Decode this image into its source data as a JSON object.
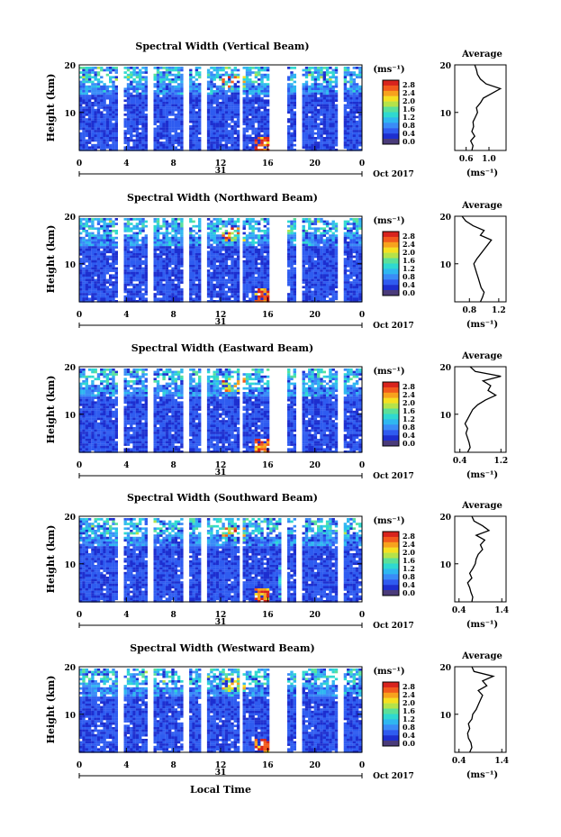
{
  "colors": {
    "scale": [
      "#3b2a8c",
      "#1d2fd0",
      "#2f5cf0",
      "#3a8cf7",
      "#2fb7f0",
      "#2fd9d0",
      "#5be09a",
      "#b5e34a",
      "#f5e020",
      "#f7a21d",
      "#f25a1d",
      "#d8231d"
    ],
    "bottom_box": "#4a3b7a",
    "line": "#000000",
    "gap": "#ffffff"
  },
  "chart_data": [
    {
      "type": "heatmap",
      "title": "Spectral Width (Vertical Beam)",
      "ylabel": "Height (km)",
      "y_ticks": [
        "20",
        "10"
      ],
      "x_ticks": [
        "0",
        "4",
        "8",
        "12",
        "16",
        "20",
        "0"
      ],
      "xlim": [
        0,
        24
      ],
      "ylim": [
        2,
        20
      ],
      "date_day": "31",
      "date_tail": "Oct 2017",
      "colorbar_unit": "(ms⁻¹)",
      "colorbar_ticks": [
        "2.8",
        "2.4",
        "2.0",
        "1.6",
        "1.2",
        "0.8",
        "0.4",
        "0.0"
      ],
      "avg_title": "Average",
      "avg_xlabel": "(ms⁻¹)",
      "avg_x_ticks": [
        "0.6",
        "1.0"
      ],
      "avg_xlim": [
        0.4,
        1.3
      ],
      "avg_y_ticks": [
        "20",
        "10"
      ],
      "avg_profile": {
        "height": [
          2,
          3,
          4,
          5,
          6,
          7,
          8,
          9,
          10,
          11,
          12,
          13,
          14,
          15,
          16,
          17,
          18,
          19,
          20
        ],
        "value": [
          0.7,
          0.72,
          0.68,
          0.75,
          0.7,
          0.73,
          0.72,
          0.76,
          0.8,
          0.78,
          0.85,
          0.9,
          1.05,
          1.2,
          0.95,
          0.85,
          0.8,
          0.78,
          0.75
        ]
      }
    },
    {
      "type": "heatmap",
      "title": "Spectral Width (Northward Beam)",
      "ylabel": "Height (km)",
      "y_ticks": [
        "20",
        "10"
      ],
      "x_ticks": [
        "0",
        "4",
        "8",
        "12",
        "16",
        "20",
        "0"
      ],
      "xlim": [
        0,
        24
      ],
      "ylim": [
        2,
        20
      ],
      "date_day": "31",
      "date_tail": "Oct 2017",
      "colorbar_unit": "(ms⁻¹)",
      "colorbar_ticks": [
        "2.8",
        "2.4",
        "2.0",
        "1.6",
        "1.2",
        "0.8",
        "0.4",
        "0.0"
      ],
      "avg_title": "Average",
      "avg_xlabel": "(ms⁻¹)",
      "avg_x_ticks": [
        "0.8",
        "1.2"
      ],
      "avg_xlim": [
        0.6,
        1.3
      ],
      "avg_y_ticks": [
        "20",
        "10"
      ],
      "avg_profile": {
        "height": [
          2,
          3,
          4,
          5,
          6,
          7,
          8,
          9,
          10,
          11,
          12,
          13,
          14,
          15,
          16,
          17,
          18,
          19,
          20
        ],
        "value": [
          0.95,
          0.98,
          1.0,
          0.96,
          0.94,
          0.92,
          0.9,
          0.88,
          0.86,
          0.9,
          0.95,
          1.0,
          1.05,
          1.1,
          0.95,
          1.0,
          0.85,
          0.75,
          0.7
        ]
      }
    },
    {
      "type": "heatmap",
      "title": "Spectral Width (Eastward Beam)",
      "ylabel": "Height (km)",
      "y_ticks": [
        "20",
        "10"
      ],
      "x_ticks": [
        "0",
        "4",
        "8",
        "12",
        "16",
        "20",
        "0"
      ],
      "xlim": [
        0,
        24
      ],
      "ylim": [
        2,
        20
      ],
      "date_day": "31",
      "date_tail": "Oct 2017",
      "colorbar_unit": "(ms⁻¹)",
      "colorbar_ticks": [
        "2.8",
        "2.4",
        "2.0",
        "1.6",
        "1.2",
        "0.8",
        "0.4",
        "0.0"
      ],
      "avg_title": "Average",
      "avg_xlabel": "(ms⁻¹)",
      "avg_x_ticks": [
        "0.4",
        "1.2"
      ],
      "avg_xlim": [
        0.3,
        1.3
      ],
      "avg_y_ticks": [
        "20",
        "10"
      ],
      "avg_profile": {
        "height": [
          2,
          3,
          4,
          5,
          6,
          7,
          8,
          9,
          10,
          11,
          12,
          13,
          14,
          15,
          16,
          17,
          18,
          19,
          20
        ],
        "value": [
          0.55,
          0.6,
          0.58,
          0.55,
          0.52,
          0.55,
          0.5,
          0.55,
          0.6,
          0.65,
          0.75,
          0.9,
          1.1,
          0.95,
          1.0,
          0.85,
          1.2,
          0.7,
          0.6
        ]
      }
    },
    {
      "type": "heatmap",
      "title": "Spectral Width (Southward Beam)",
      "ylabel": "Height (km)",
      "y_ticks": [
        "20",
        "10"
      ],
      "x_ticks": [
        "0",
        "4",
        "8",
        "12",
        "16",
        "20",
        "0"
      ],
      "xlim": [
        0,
        24
      ],
      "ylim": [
        2,
        20
      ],
      "date_day": "31",
      "date_tail": "Oct 2017",
      "colorbar_unit": "(ms⁻¹)",
      "colorbar_ticks": [
        "2.8",
        "2.4",
        "2.0",
        "1.6",
        "1.2",
        "0.8",
        "0.4",
        "0.0"
      ],
      "avg_title": "Average",
      "avg_xlabel": "(ms⁻¹)",
      "avg_x_ticks": [
        "0.4",
        "1.4"
      ],
      "avg_xlim": [
        0.3,
        1.5
      ],
      "avg_y_ticks": [
        "20",
        "10"
      ],
      "avg_profile": {
        "height": [
          2,
          3,
          4,
          5,
          6,
          7,
          8,
          9,
          10,
          11,
          12,
          13,
          14,
          15,
          16,
          17,
          18,
          19,
          20
        ],
        "value": [
          0.7,
          0.72,
          0.68,
          0.65,
          0.6,
          0.7,
          0.65,
          0.72,
          0.78,
          0.8,
          0.85,
          0.95,
          0.9,
          1.0,
          0.8,
          1.1,
          0.95,
          0.75,
          0.7
        ]
      }
    },
    {
      "type": "heatmap",
      "title": "Spectral Width (Westward Beam)",
      "ylabel": "Height (km)",
      "y_ticks": [
        "20",
        "10"
      ],
      "x_ticks": [
        "0",
        "4",
        "8",
        "12",
        "16",
        "20",
        "0"
      ],
      "xlim": [
        0,
        24
      ],
      "ylim": [
        2,
        20
      ],
      "date_day": "31",
      "date_tail": "Oct 2017",
      "colorbar_unit": "(ms⁻¹)",
      "colorbar_ticks": [
        "2.8",
        "2.4",
        "2.0",
        "1.6",
        "1.2",
        "0.8",
        "0.4",
        "0.0"
      ],
      "avg_title": "Average",
      "avg_xlabel": "(ms⁻¹)",
      "avg_x_ticks": [
        "0.4",
        "1.4"
      ],
      "avg_xlim": [
        0.3,
        1.5
      ],
      "avg_y_ticks": [
        "20",
        "10"
      ],
      "avg_profile": {
        "height": [
          2,
          3,
          4,
          5,
          6,
          7,
          8,
          9,
          10,
          11,
          12,
          13,
          14,
          15,
          16,
          17,
          18,
          19,
          20
        ],
        "value": [
          0.65,
          0.7,
          0.68,
          0.62,
          0.6,
          0.65,
          0.62,
          0.7,
          0.72,
          0.8,
          0.85,
          0.9,
          0.95,
          0.85,
          1.05,
          0.95,
          1.2,
          0.75,
          0.7
        ]
      }
    }
  ],
  "footer": {
    "xlabel": "Local Time"
  }
}
